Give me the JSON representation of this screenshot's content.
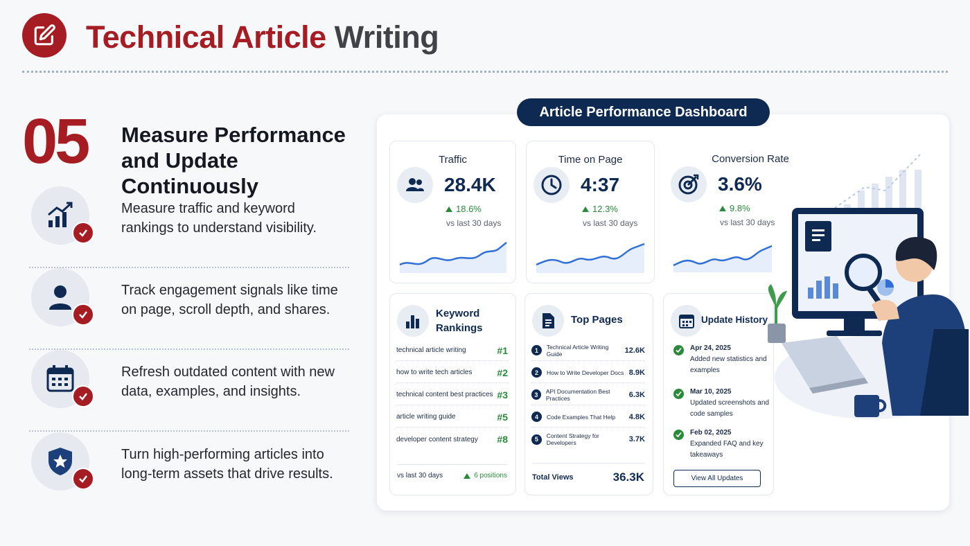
{
  "header": {
    "title_red": "Technical Article",
    "title_gray": "Writing"
  },
  "step": {
    "number": "05",
    "title": "Measure Performance and Update Continuously"
  },
  "steps_list": [
    {
      "icon": "chart-up-icon",
      "text": "Measure traffic and keyword rankings to understand visibility."
    },
    {
      "icon": "user-icon",
      "text": "Track engagement signals like time on page, scroll depth, and shares."
    },
    {
      "icon": "calendar-icon",
      "text": "Refresh outdated content with new data, examples, and insights."
    },
    {
      "icon": "shield-star-icon",
      "text": "Turn high-performing articles into long-term assets that drive results."
    }
  ],
  "dashboard": {
    "title": "Article Performance Dashboard",
    "metrics": [
      {
        "label": "Traffic",
        "value": "28.4K",
        "change": "18.6%",
        "period": "vs last 30 days",
        "icon": "users-icon"
      },
      {
        "label": "Time on Page",
        "value": "4:37",
        "change": "12.3%",
        "period": "vs last 30 days",
        "icon": "clock-icon"
      },
      {
        "label": "Conversion Rate",
        "value": "3.6%",
        "change": "9.8%",
        "period": "vs last 30 days",
        "icon": "target-icon"
      }
    ],
    "keywords": {
      "title": "Keyword Rankings",
      "rows": [
        {
          "keyword": "technical article writing",
          "rank": "#1"
        },
        {
          "keyword": "how to write tech articles",
          "rank": "#2"
        },
        {
          "keyword": "technical content best practices",
          "rank": "#3"
        },
        {
          "keyword": "article writing guide",
          "rank": "#5"
        },
        {
          "keyword": "developer content strategy",
          "rank": "#8"
        }
      ],
      "footer_period": "vs last 30 days",
      "footer_change": "6 positions"
    },
    "top_pages": {
      "title": "Top Pages",
      "rows": [
        {
          "n": "1",
          "page": "Technical Article Writing Guide",
          "views": "12.6K"
        },
        {
          "n": "2",
          "page": "How to Write Developer Docs",
          "views": "8.9K"
        },
        {
          "n": "3",
          "page": "API Documentation Best Practices",
          "views": "6.3K"
        },
        {
          "n": "4",
          "page": "Code Examples That Help",
          "views": "4.8K"
        },
        {
          "n": "5",
          "page": "Content Strategy for Developers",
          "views": "3.7K"
        }
      ],
      "total_label": "Total Views",
      "total_value": "36.3K"
    },
    "update_history": {
      "title": "Update History",
      "items": [
        {
          "date": "Apr 24, 2025",
          "desc": "Added new statistics and examples"
        },
        {
          "date": "Mar 10, 2025",
          "desc": "Updated screenshots and code samples"
        },
        {
          "date": "Feb 02, 2025",
          "desc": "Expanded FAQ and key takeaways"
        }
      ],
      "button": "View All Updates"
    }
  },
  "colors": {
    "accent_red": "#a51c22",
    "navy": "#0f2a52",
    "green": "#2a8a3a",
    "line_blue": "#2f6fd6"
  }
}
